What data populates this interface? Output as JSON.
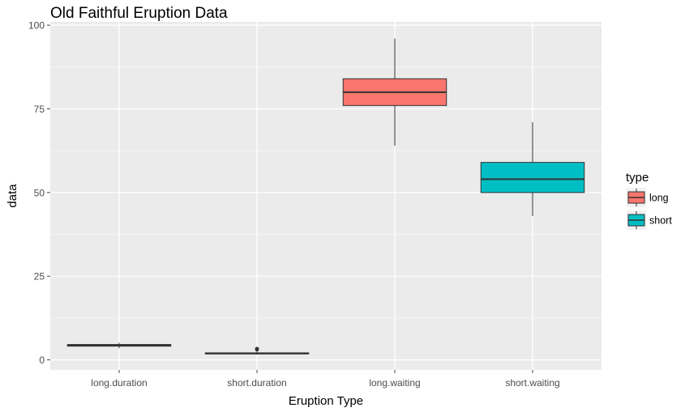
{
  "chart_data": {
    "type": "boxplot",
    "title": "Old Faithful Eruption Data",
    "xlabel": "Eruption Type",
    "ylabel": "data",
    "ylim": [
      -3,
      101
    ],
    "yticks": [
      0,
      25,
      50,
      75,
      100
    ],
    "categories": [
      "long.duration",
      "short.duration",
      "long.waiting",
      "short.waiting"
    ],
    "grid": true,
    "legend": {
      "title": "type",
      "position": "right",
      "entries": [
        {
          "name": "long",
          "color": "#f8766d"
        },
        {
          "name": "short",
          "color": "#00bfc4"
        }
      ]
    },
    "boxes": [
      {
        "category": "long.duration",
        "type": "long",
        "min": 3.5,
        "q1": 4.1,
        "median": 4.3,
        "q3": 4.6,
        "max": 5.1,
        "outliers": []
      },
      {
        "category": "short.duration",
        "type": "short",
        "min": 1.6,
        "q1": 1.8,
        "median": 1.9,
        "q3": 2.1,
        "max": 2.5,
        "outliers": [
          3.1,
          3.3
        ]
      },
      {
        "category": "long.waiting",
        "type": "long",
        "min": 64,
        "q1": 76,
        "median": 80,
        "q3": 84,
        "max": 96,
        "outliers": []
      },
      {
        "category": "short.waiting",
        "type": "short",
        "min": 43,
        "q1": 50,
        "median": 54,
        "q3": 59,
        "max": 71,
        "outliers": []
      }
    ]
  }
}
